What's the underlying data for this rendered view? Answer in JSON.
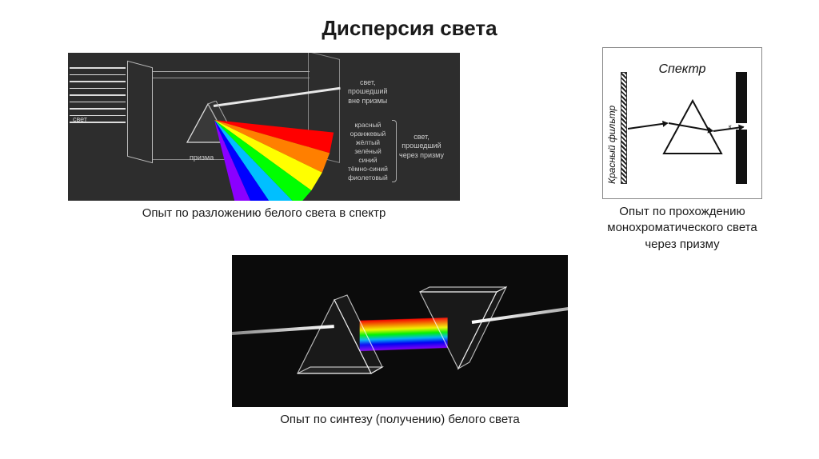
{
  "page_title": "Дисперсия света",
  "figure1": {
    "caption": "Опыт по разложению белого света в спектр",
    "bg_color": "#2d2d2d",
    "labels": {
      "light": "свет",
      "prism": "призма",
      "outside": "свет,\nпрошедший\nвне призмы",
      "through": "свет,\nпрошедший\nчерез призму"
    },
    "spectrum_colors": [
      "красный",
      "оранжевый",
      "жёлтый",
      "зелёный",
      "синий",
      "тёмно-синий",
      "фиолетовый"
    ],
    "spectrum_hex": [
      "#ff0000",
      "#ff7f00",
      "#ffff00",
      "#00ff00",
      "#00bfff",
      "#0000ff",
      "#8b00ff"
    ],
    "light_line_count": 9
  },
  "figure2": {
    "caption": "Опыт по прохождению монохроматического света через призму",
    "title": "Спектр",
    "left_label": "Красный фильтр",
    "slit_label": "к",
    "border_color": "#888888",
    "prism_stroke": "#111111"
  },
  "figure3": {
    "caption": "Опыт по синтезу (получению) белого света",
    "bg_color": "#0b0b0b",
    "spectrum_hex": [
      "#ff0000",
      "#ff7f00",
      "#ffff00",
      "#00ff00",
      "#00bfff",
      "#0000ff",
      "#8b00ff"
    ],
    "beam_color": "#ffffff"
  }
}
